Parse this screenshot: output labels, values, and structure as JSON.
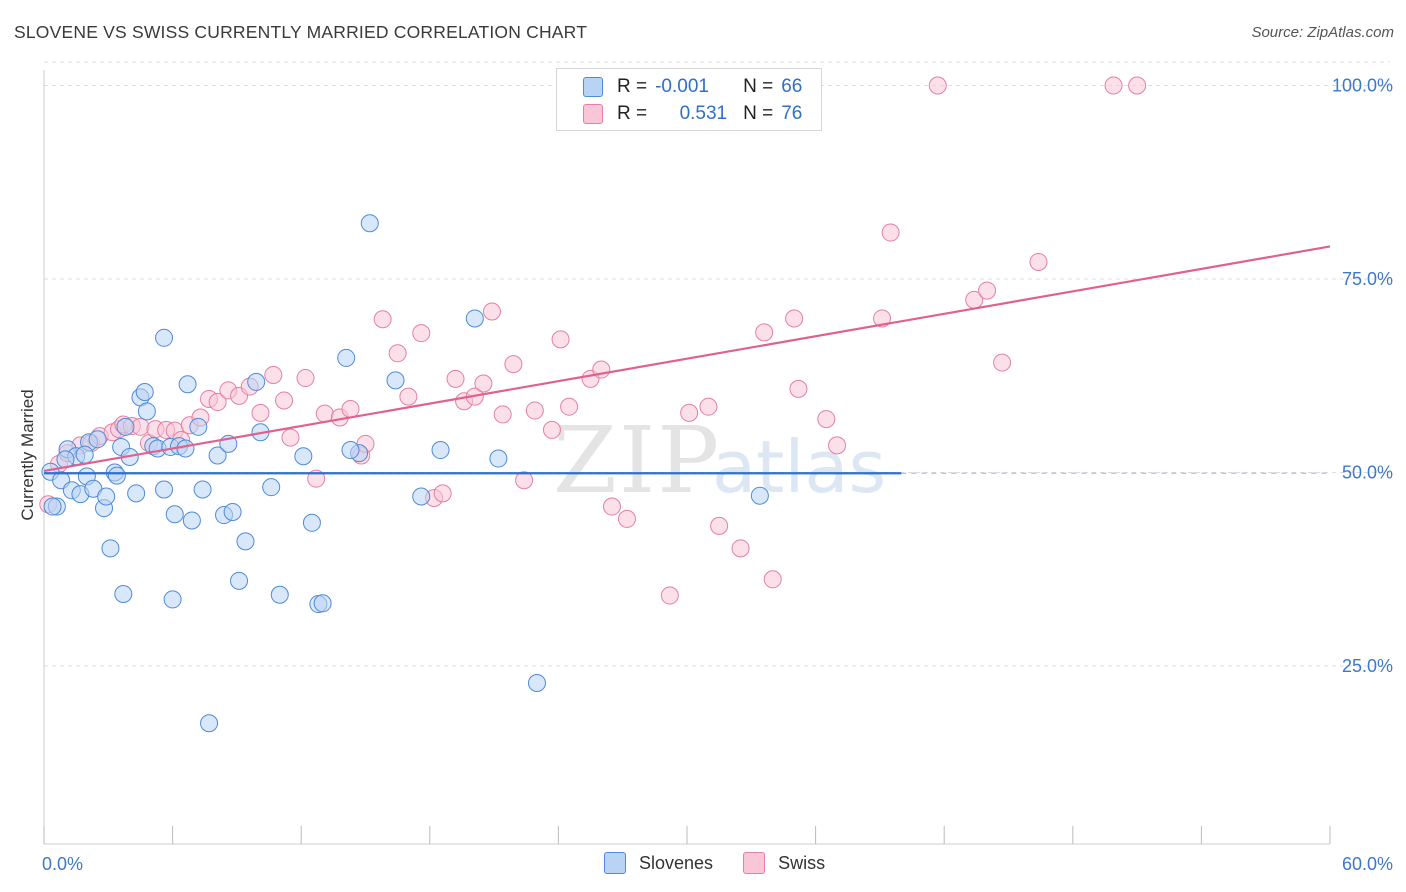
{
  "title": "SLOVENE VS SWISS CURRENTLY MARRIED CORRELATION CHART",
  "source": "Source: ZipAtlas.com",
  "watermark": {
    "zip": "ZIP",
    "atlas": "atlas"
  },
  "colors": {
    "slovenes_fill": "#b9d3f5",
    "slovenes_stroke": "#4f8bd6",
    "slovenes_line": "#2b6fd1",
    "swiss_fill": "#f8c6d7",
    "swiss_stroke": "#e57fa3",
    "swiss_line": "#e0608e",
    "tick_label": "#3e78c9",
    "grid": "#dddddd"
  },
  "legend": {
    "rows": [
      {
        "r_label": "R =",
        "r_value": "-0.001",
        "n_label": "N =",
        "n_value": "66"
      },
      {
        "r_label": "R =",
        "r_value": "0.531",
        "n_label": "N =",
        "n_value": "76"
      }
    ]
  },
  "chart_data": {
    "type": "scatter",
    "title": "SLOVENE VS SWISS CURRENTLY MARRIED CORRELATION CHART",
    "xlabel": "",
    "ylabel": "Currently Married",
    "xlim": [
      0,
      60
    ],
    "ylim": [
      2,
      102
    ],
    "x_tick_labels": [
      "0.0%",
      "60.0%"
    ],
    "y_ticks": [
      25,
      50,
      75,
      100
    ],
    "y_tick_labels": [
      "25.0%",
      "50.0%",
      "75.0%",
      "100.0%"
    ],
    "grid": "horizontal dashed",
    "legend_position": "top-center",
    "series": [
      {
        "name": "Slovenes",
        "trend": {
          "x": [
            0,
            40
          ],
          "y": [
            49.9,
            49.9
          ]
        },
        "points": [
          [
            0.3,
            50.1
          ],
          [
            0.6,
            45.6
          ],
          [
            0.8,
            49.0
          ],
          [
            1.1,
            53.0
          ],
          [
            1.3,
            47.7
          ],
          [
            1.5,
            52.1
          ],
          [
            1.7,
            47.2
          ],
          [
            2.0,
            49.5
          ],
          [
            2.1,
            53.9
          ],
          [
            2.3,
            47.9
          ],
          [
            2.5,
            54.3
          ],
          [
            2.8,
            45.4
          ],
          [
            2.9,
            46.9
          ],
          [
            3.1,
            40.2
          ],
          [
            3.3,
            50.0
          ],
          [
            3.4,
            49.6
          ],
          [
            3.6,
            53.3
          ],
          [
            3.7,
            34.3
          ],
          [
            3.8,
            55.9
          ],
          [
            4.0,
            52.0
          ],
          [
            4.3,
            47.3
          ],
          [
            4.5,
            59.7
          ],
          [
            4.7,
            60.4
          ],
          [
            4.8,
            57.9
          ],
          [
            5.1,
            53.4
          ],
          [
            5.3,
            53.1
          ],
          [
            5.6,
            67.4
          ],
          [
            5.9,
            53.3
          ],
          [
            6.0,
            33.6
          ],
          [
            6.1,
            44.6
          ],
          [
            6.3,
            53.4
          ],
          [
            6.7,
            61.4
          ],
          [
            6.9,
            43.8
          ],
          [
            7.2,
            55.9
          ],
          [
            7.4,
            47.8
          ],
          [
            7.7,
            17.6
          ],
          [
            8.1,
            52.2
          ],
          [
            8.4,
            44.5
          ],
          [
            8.6,
            53.7
          ],
          [
            8.8,
            44.9
          ],
          [
            9.1,
            36.0
          ],
          [
            9.4,
            41.1
          ],
          [
            9.9,
            61.7
          ],
          [
            10.1,
            55.2
          ],
          [
            10.6,
            48.1
          ],
          [
            11.0,
            34.2
          ],
          [
            12.1,
            52.1
          ],
          [
            12.5,
            43.5
          ],
          [
            12.8,
            33.0
          ],
          [
            13.0,
            33.1
          ],
          [
            14.1,
            64.8
          ],
          [
            14.7,
            52.5
          ],
          [
            15.2,
            82.2
          ],
          [
            16.4,
            61.9
          ],
          [
            17.6,
            46.9
          ],
          [
            18.5,
            52.9
          ],
          [
            20.1,
            69.9
          ],
          [
            21.2,
            51.8
          ],
          [
            23.0,
            22.8
          ],
          [
            33.4,
            47.0
          ],
          [
            1.0,
            51.7
          ],
          [
            1.9,
            52.3
          ],
          [
            5.6,
            47.8
          ],
          [
            6.6,
            53.1
          ],
          [
            0.4,
            45.6
          ],
          [
            14.3,
            52.9
          ]
        ]
      },
      {
        "name": "Swiss",
        "trend": {
          "x": [
            0,
            60
          ],
          "y": [
            50.2,
            79.2
          ]
        },
        "points": [
          [
            0.2,
            45.9
          ],
          [
            0.7,
            51.1
          ],
          [
            1.1,
            52.5
          ],
          [
            1.7,
            53.5
          ],
          [
            2.2,
            53.8
          ],
          [
            2.6,
            54.7
          ],
          [
            3.2,
            55.2
          ],
          [
            3.5,
            55.6
          ],
          [
            3.7,
            56.2
          ],
          [
            4.1,
            56.0
          ],
          [
            4.5,
            55.9
          ],
          [
            4.9,
            53.8
          ],
          [
            5.2,
            55.6
          ],
          [
            5.7,
            55.5
          ],
          [
            6.1,
            55.4
          ],
          [
            6.4,
            54.2
          ],
          [
            6.8,
            56.1
          ],
          [
            7.3,
            57.1
          ],
          [
            7.7,
            59.5
          ],
          [
            8.1,
            59.1
          ],
          [
            8.6,
            60.6
          ],
          [
            9.1,
            59.9
          ],
          [
            9.6,
            61.1
          ],
          [
            10.1,
            57.7
          ],
          [
            10.7,
            62.6
          ],
          [
            11.2,
            59.3
          ],
          [
            11.5,
            54.5
          ],
          [
            12.2,
            62.2
          ],
          [
            12.7,
            49.2
          ],
          [
            13.1,
            57.6
          ],
          [
            13.8,
            57.1
          ],
          [
            14.3,
            58.2
          ],
          [
            14.8,
            52.2
          ],
          [
            15.0,
            53.7
          ],
          [
            15.8,
            69.8
          ],
          [
            16.5,
            65.4
          ],
          [
            17.0,
            59.8
          ],
          [
            17.6,
            68.0
          ],
          [
            18.2,
            46.7
          ],
          [
            18.6,
            47.3
          ],
          [
            19.2,
            62.1
          ],
          [
            19.6,
            59.2
          ],
          [
            20.1,
            59.8
          ],
          [
            20.5,
            61.5
          ],
          [
            20.9,
            70.8
          ],
          [
            21.4,
            57.5
          ],
          [
            21.9,
            64.0
          ],
          [
            22.4,
            49.0
          ],
          [
            22.9,
            58.0
          ],
          [
            23.7,
            55.5
          ],
          [
            24.1,
            67.2
          ],
          [
            24.5,
            58.5
          ],
          [
            25.5,
            62.1
          ],
          [
            26.0,
            63.3
          ],
          [
            26.5,
            45.6
          ],
          [
            27.2,
            44.0
          ],
          [
            29.2,
            34.1
          ],
          [
            30.1,
            57.7
          ],
          [
            31.0,
            58.5
          ],
          [
            31.5,
            43.1
          ],
          [
            32.5,
            40.2
          ],
          [
            33.6,
            68.1
          ],
          [
            34.0,
            36.2
          ],
          [
            35.0,
            69.9
          ],
          [
            35.2,
            60.8
          ],
          [
            36.5,
            56.9
          ],
          [
            37.0,
            53.5
          ],
          [
            39.1,
            69.9
          ],
          [
            39.5,
            81.0
          ],
          [
            41.7,
            100.0
          ],
          [
            43.4,
            72.3
          ],
          [
            44.0,
            73.5
          ],
          [
            44.7,
            64.2
          ],
          [
            46.4,
            77.2
          ],
          [
            49.9,
            100.0
          ],
          [
            51.0,
            100.0
          ]
        ]
      }
    ]
  },
  "bottom_legend": [
    {
      "label": "Slovenes"
    },
    {
      "label": "Swiss"
    }
  ]
}
